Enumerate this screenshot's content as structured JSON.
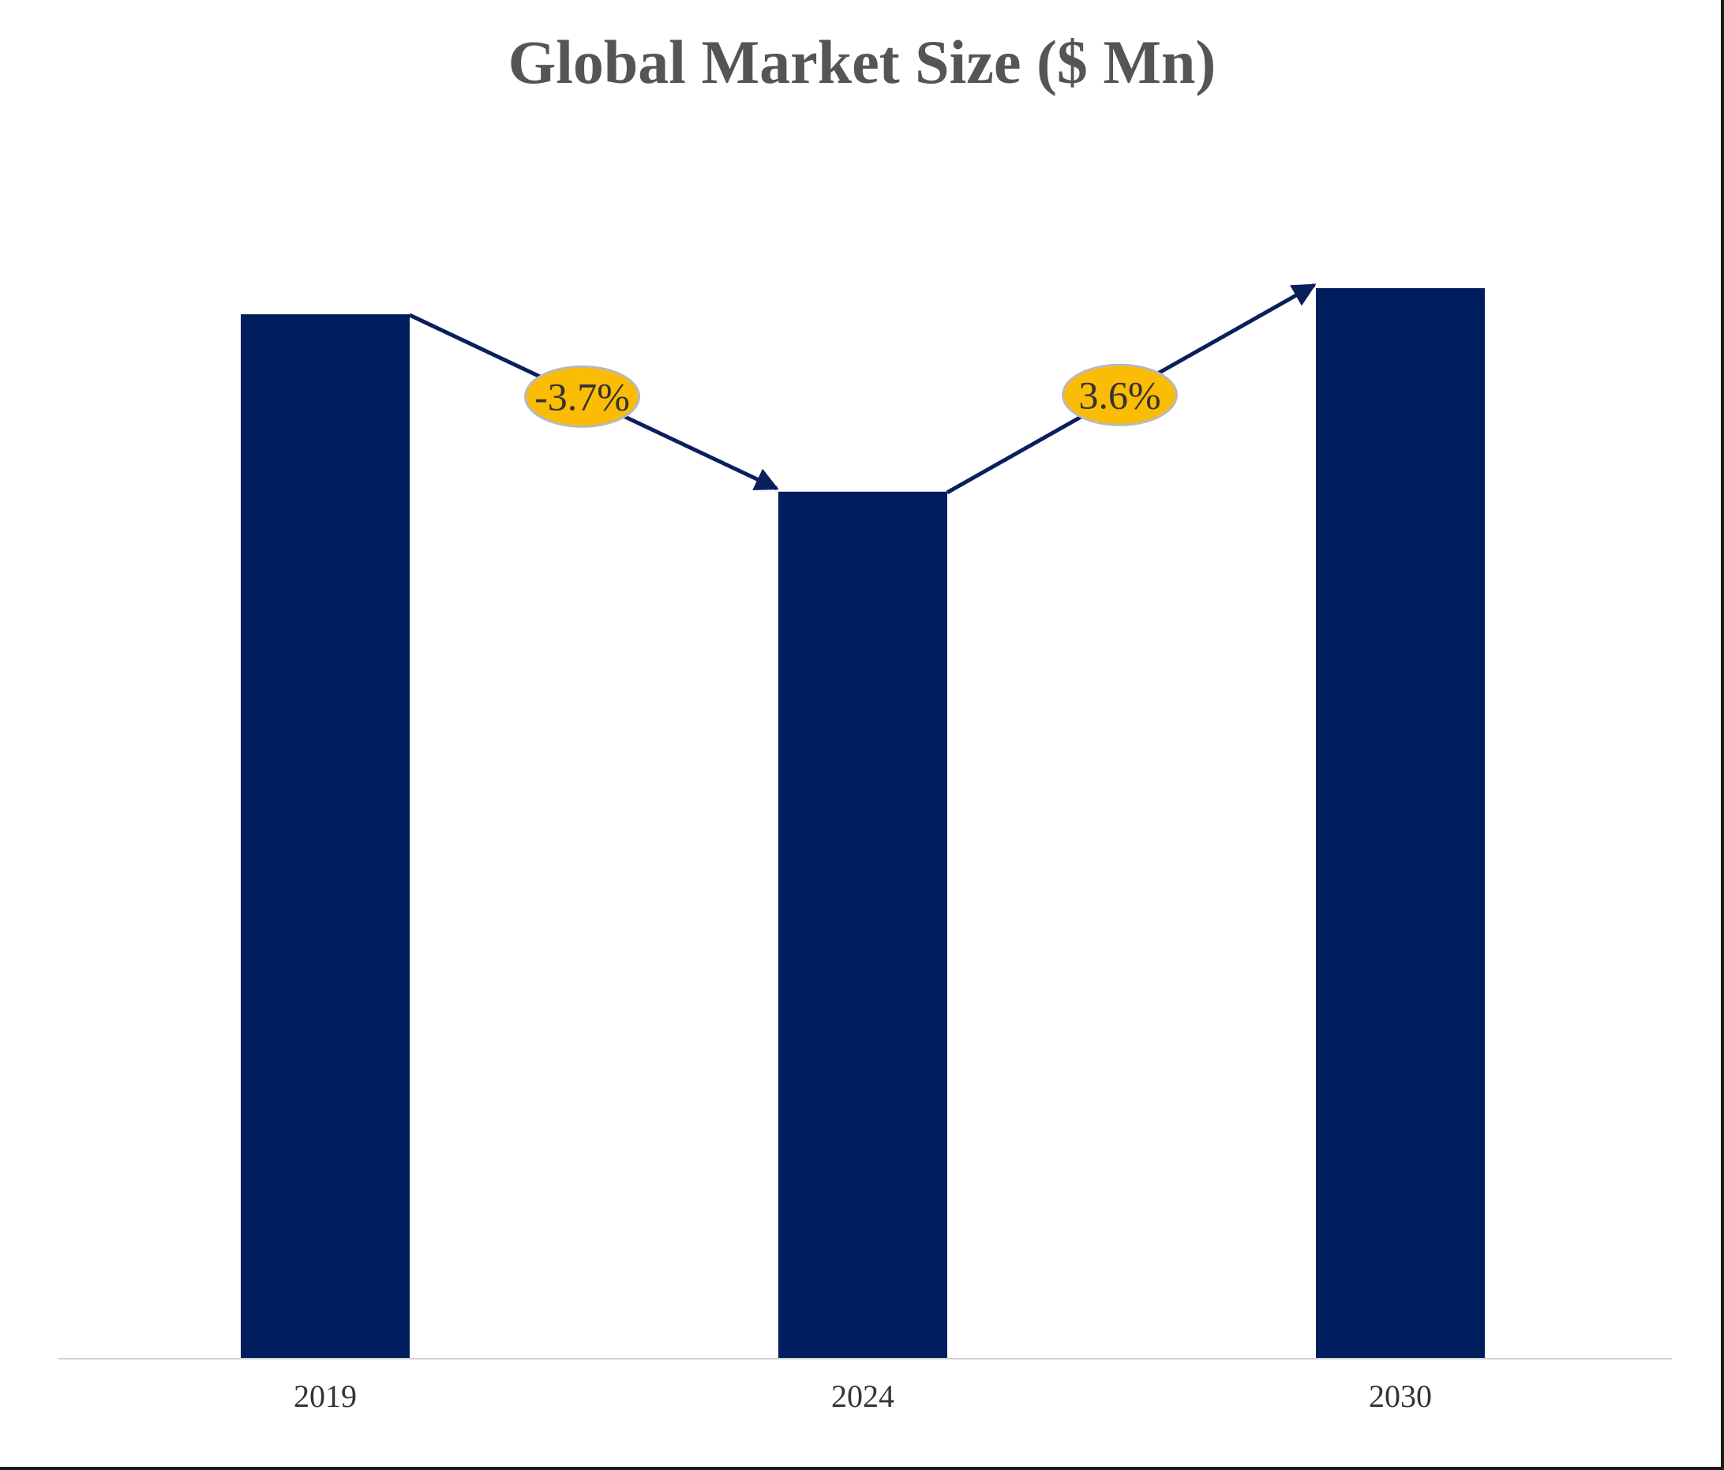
{
  "chart_data": {
    "type": "bar",
    "title": "Global Market Size ($ Mn)",
    "categories": [
      "2019",
      "2024",
      "2030"
    ],
    "values": [
      1000,
      830,
      1025
    ],
    "ylim": [
      0,
      1140
    ],
    "grid": false,
    "legend": "none",
    "annotations": [
      {
        "from": "2019",
        "to": "2024",
        "label": "-3.7%"
      },
      {
        "from": "2024",
        "to": "2030",
        "label": "3.6%"
      }
    ],
    "colors": {
      "bar": "#001e5e",
      "arrow": "#0a1f5c",
      "badge_fill": "#fbbc05",
      "badge_stroke": "#b9b9b9",
      "axis": "#d0d0d0"
    }
  }
}
